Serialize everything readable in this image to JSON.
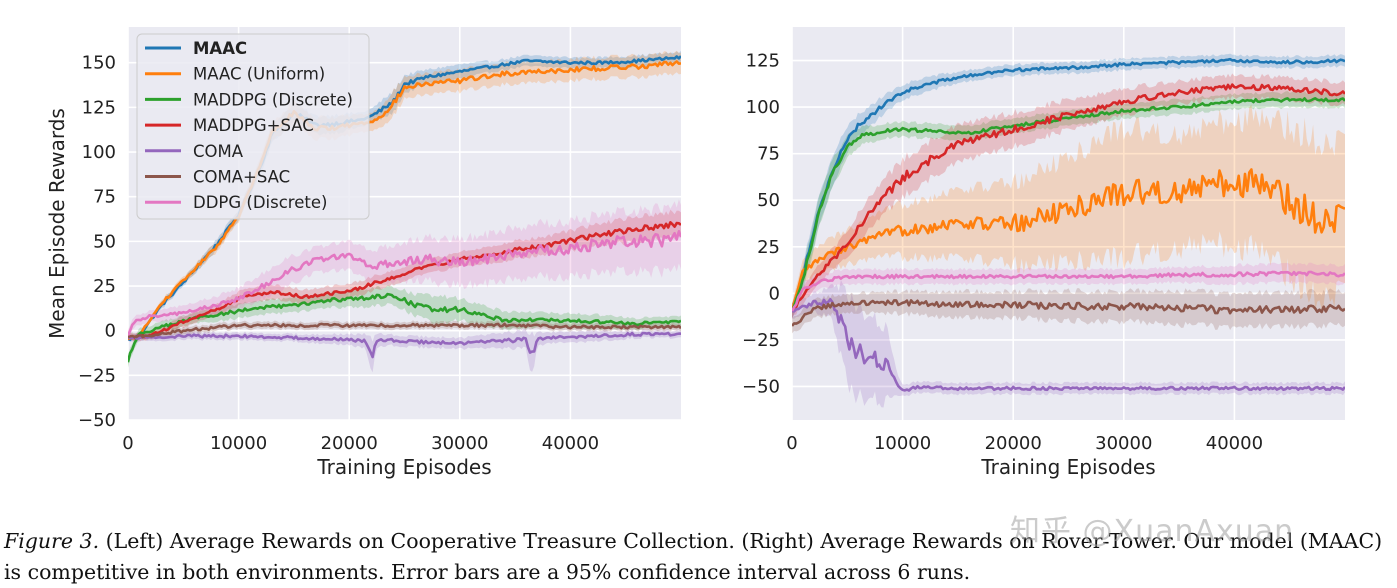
{
  "chart_data": [
    {
      "type": "line",
      "title": "",
      "xlabel": "Training Episodes",
      "ylabel": "Mean Episode Rewards",
      "xlim": [
        0,
        50000
      ],
      "ylim": [
        -50,
        170
      ],
      "xticks": [
        0,
        10000,
        20000,
        30000,
        40000
      ],
      "xtick_labels": [
        "0",
        "10000",
        "20000",
        "30000",
        "40000"
      ],
      "yticks": [
        -50,
        -25,
        0,
        25,
        50,
        75,
        100,
        125,
        150
      ],
      "ytick_labels": [
        "−50",
        "−25",
        "0",
        "25",
        "50",
        "75",
        "100",
        "125",
        "150"
      ],
      "grid": true,
      "legend_position": "top-left",
      "series": [
        {
          "name": "MAAC",
          "color": "#1f77b4",
          "bold": true,
          "x": [
            0,
            1000,
            3000,
            5000,
            8000,
            10000,
            12000,
            13000,
            15000,
            17000,
            19000,
            21000,
            22000,
            23000,
            24000,
            25000,
            27000,
            30000,
            33000,
            36000,
            40000,
            43000,
            46000,
            50000
          ],
          "values": [
            -5,
            -3,
            14,
            27,
            48,
            65,
            92,
            110,
            122,
            115,
            116,
            118,
            120,
            124,
            128,
            138,
            142,
            145,
            148,
            151,
            150,
            150,
            151,
            153
          ],
          "band": [
            0,
            0,
            2,
            2,
            3,
            3,
            4,
            5,
            5,
            5,
            5,
            4,
            4,
            5,
            6,
            5,
            4,
            4,
            3,
            3,
            3,
            3,
            3,
            3
          ]
        },
        {
          "name": "MAAC (Uniform)",
          "color": "#ff7f0e",
          "x": [
            0,
            1000,
            3000,
            5000,
            8000,
            10000,
            12000,
            13000,
            15000,
            17000,
            19000,
            21000,
            22000,
            23000,
            24000,
            25000,
            27000,
            30000,
            33000,
            36000,
            40000,
            43000,
            46000,
            50000
          ],
          "values": [
            -5,
            -3,
            15,
            28,
            47,
            64,
            93,
            111,
            122,
            113,
            114,
            116,
            117,
            121,
            127,
            136,
            138,
            140,
            143,
            145,
            146,
            147,
            148,
            150
          ],
          "band": [
            0,
            0,
            2,
            2,
            3,
            3,
            4,
            5,
            6,
            6,
            6,
            5,
            5,
            6,
            7,
            6,
            6,
            6,
            6,
            6,
            6,
            6,
            6,
            6
          ]
        },
        {
          "name": "MADDPG (Discrete)",
          "color": "#2ca02c",
          "x": [
            0,
            200,
            1000,
            3000,
            6000,
            9000,
            12000,
            15000,
            18000,
            21000,
            24000,
            26000,
            28000,
            30000,
            34000,
            38000,
            42000,
            46000,
            50000
          ],
          "values": [
            -18,
            -12,
            -2,
            2,
            7,
            10,
            13,
            14,
            17,
            18,
            20,
            14,
            12,
            12,
            6,
            6,
            5,
            4,
            5
          ],
          "band": [
            3,
            3,
            3,
            3,
            3,
            4,
            4,
            4,
            4,
            5,
            5,
            6,
            8,
            6,
            5,
            4,
            4,
            3,
            3
          ]
        },
        {
          "name": "MADDPG+SAC",
          "color": "#d62728",
          "x": [
            0,
            2000,
            5000,
            8000,
            10000,
            13000,
            16000,
            20000,
            23000,
            26000,
            30000,
            34000,
            38000,
            42000,
            46000,
            50000
          ],
          "values": [
            -4,
            -3,
            5,
            12,
            18,
            22,
            19,
            22,
            28,
            34,
            40,
            44,
            48,
            53,
            57,
            60
          ],
          "band": [
            2,
            2,
            3,
            3,
            4,
            4,
            4,
            4,
            4,
            4,
            4,
            5,
            5,
            6,
            7,
            7
          ]
        },
        {
          "name": "COMA",
          "color": "#9467bd",
          "x": [
            0,
            5000,
            10000,
            15000,
            20000,
            21500,
            22000,
            22500,
            23500,
            25000,
            30000,
            33000,
            36000,
            36500,
            37000,
            38000,
            42000,
            46000,
            50000
          ],
          "values": [
            -4,
            -3,
            -3,
            -4,
            -5,
            -6,
            -15,
            -6,
            -5,
            -6,
            -7,
            -6,
            -5,
            -14,
            -5,
            -4,
            -3,
            -2,
            -2
          ],
          "band": [
            2,
            2,
            2,
            2,
            3,
            4,
            10,
            4,
            3,
            3,
            3,
            4,
            5,
            12,
            4,
            3,
            3,
            2,
            2
          ]
        },
        {
          "name": "COMA+SAC",
          "color": "#8c564b",
          "x": [
            0,
            5000,
            10000,
            15000,
            20000,
            25000,
            30000,
            35000,
            40000,
            45000,
            50000
          ],
          "values": [
            -4,
            0,
            3,
            3,
            3,
            3,
            3,
            3,
            2,
            2,
            2
          ],
          "band": [
            2,
            2,
            2,
            2,
            2,
            2,
            2,
            2,
            2,
            2,
            2
          ]
        },
        {
          "name": "DDPG (Discrete)",
          "color": "#e377c2",
          "x": [
            0,
            500,
            2000,
            5000,
            8000,
            10000,
            12000,
            14000,
            17000,
            20000,
            22000,
            24000,
            27000,
            30000,
            34000,
            38000,
            42000,
            46000,
            50000
          ],
          "values": [
            -3,
            5,
            8,
            10,
            14,
            18,
            24,
            32,
            40,
            42,
            36,
            38,
            40,
            38,
            42,
            45,
            48,
            50,
            52
          ],
          "band": [
            3,
            3,
            3,
            4,
            5,
            6,
            7,
            8,
            7,
            8,
            9,
            10,
            12,
            13,
            14,
            15,
            16,
            17,
            18
          ]
        }
      ],
      "legend": [
        "MAAC",
        "MAAC (Uniform)",
        "MADDPG (Discrete)",
        "MADDPG+SAC",
        "COMA",
        "COMA+SAC",
        "DDPG (Discrete)"
      ]
    },
    {
      "type": "line",
      "title": "",
      "xlabel": "Training Episodes",
      "ylabel": "",
      "xlim": [
        0,
        50000
      ],
      "ylim": [
        -68,
        143
      ],
      "xticks": [
        0,
        10000,
        20000,
        30000,
        40000
      ],
      "xtick_labels": [
        "0",
        "10000",
        "20000",
        "30000",
        "40000"
      ],
      "yticks": [
        -50,
        -25,
        0,
        25,
        50,
        75,
        100,
        125
      ],
      "ytick_labels": [
        "−50",
        "−25",
        "0",
        "25",
        "50",
        "75",
        "100",
        "125"
      ],
      "grid": true,
      "series": [
        {
          "name": "MAAC",
          "color": "#1f77b4",
          "x": [
            0,
            1000,
            2000,
            3000,
            4000,
            5000,
            6000,
            8000,
            10000,
            12000,
            15000,
            20000,
            25000,
            30000,
            35000,
            40000,
            45000,
            50000
          ],
          "values": [
            -10,
            10,
            35,
            55,
            70,
            82,
            90,
            100,
            108,
            112,
            116,
            120,
            121,
            123,
            124,
            125,
            124,
            125
          ],
          "band": [
            4,
            6,
            8,
            8,
            8,
            7,
            6,
            5,
            4,
            4,
            3,
            3,
            3,
            3,
            3,
            3,
            3,
            3
          ]
        },
        {
          "name": "MAAC (Uniform)",
          "color": "#ff7f0e",
          "x": [
            0,
            1000,
            3000,
            6000,
            10000,
            15000,
            20000,
            25000,
            30000,
            33000,
            36000,
            40000,
            43000,
            45000,
            47000,
            50000
          ],
          "values": [
            -10,
            12,
            20,
            27,
            34,
            38,
            37,
            45,
            55,
            54,
            56,
            60,
            58,
            50,
            42,
            42
          ],
          "band": [
            4,
            6,
            8,
            10,
            14,
            18,
            22,
            28,
            35,
            32,
            30,
            34,
            36,
            40,
            42,
            40
          ]
        },
        {
          "name": "MADDPG (Discrete)",
          "color": "#2ca02c",
          "x": [
            0,
            1000,
            2000,
            3000,
            4000,
            5000,
            6000,
            8000,
            10000,
            13000,
            16000,
            20000,
            25000,
            30000,
            35000,
            40000,
            45000,
            50000
          ],
          "values": [
            -10,
            8,
            32,
            55,
            68,
            78,
            84,
            87,
            88,
            87,
            86,
            90,
            94,
            98,
            100,
            103,
            104,
            104
          ],
          "band": [
            4,
            6,
            8,
            8,
            7,
            6,
            5,
            4,
            4,
            4,
            4,
            4,
            4,
            4,
            4,
            4,
            4,
            4
          ]
        },
        {
          "name": "MADDPG+SAC",
          "color": "#d62728",
          "x": [
            0,
            2000,
            4000,
            6000,
            8000,
            10000,
            12000,
            15000,
            20000,
            25000,
            30000,
            35000,
            40000,
            45000,
            50000
          ],
          "values": [
            -10,
            8,
            20,
            35,
            50,
            62,
            70,
            80,
            88,
            96,
            103,
            108,
            111,
            110,
            107
          ],
          "band": [
            4,
            5,
            6,
            8,
            9,
            10,
            10,
            10,
            9,
            8,
            7,
            6,
            6,
            6,
            6
          ]
        },
        {
          "name": "COMA",
          "color": "#9467bd",
          "x": [
            0,
            2000,
            3500,
            4500,
            5500,
            7000,
            8500,
            9500,
            10000,
            12000,
            15000,
            20000,
            25000,
            30000,
            35000,
            40000,
            45000,
            50000
          ],
          "values": [
            -10,
            -5,
            -5,
            -15,
            -30,
            -35,
            -38,
            -50,
            -52,
            -50,
            -51,
            -51,
            -51,
            -51,
            -51,
            -51,
            -51,
            -51
          ],
          "band": [
            4,
            5,
            8,
            20,
            25,
            22,
            20,
            6,
            3,
            3,
            3,
            3,
            3,
            3,
            3,
            3,
            3,
            3
          ]
        },
        {
          "name": "COMA+SAC",
          "color": "#8c564b",
          "x": [
            0,
            2000,
            5000,
            10000,
            15000,
            20000,
            25000,
            30000,
            35000,
            40000,
            45000,
            50000
          ],
          "values": [
            -18,
            -8,
            -5,
            -5,
            -6,
            -6,
            -7,
            -7,
            -8,
            -9,
            -9,
            -8
          ],
          "band": [
            4,
            5,
            5,
            6,
            7,
            7,
            8,
            8,
            9,
            9,
            9,
            9
          ]
        },
        {
          "name": "DDPG (Discrete)",
          "color": "#e377c2",
          "x": [
            0,
            1000,
            3000,
            5000,
            10000,
            15000,
            20000,
            25000,
            30000,
            35000,
            40000,
            45000,
            50000
          ],
          "values": [
            -10,
            3,
            7,
            9,
            9,
            9,
            9,
            9,
            9,
            10,
            10,
            11,
            10
          ],
          "band": [
            4,
            4,
            4,
            4,
            4,
            4,
            4,
            4,
            4,
            4,
            5,
            5,
            5
          ]
        }
      ]
    }
  ],
  "caption": {
    "figure_label": "Figure 3.",
    "text": " (Left) Average Rewards on Cooperative Treasure Collection. (Right) Average Rewards on Rover-Tower. Our model (MAAC) is competitive in both environments. Error bars are a 95% confidence interval across 6 runs."
  },
  "watermark": "知乎 @XuanAxuan"
}
